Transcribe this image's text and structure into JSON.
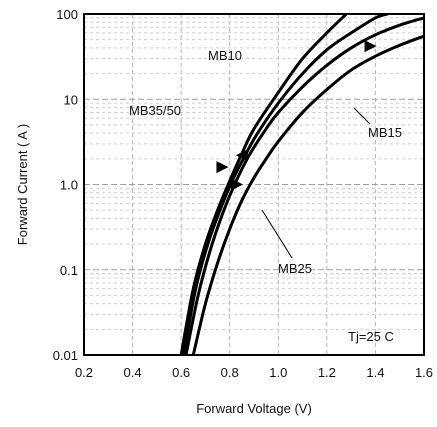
{
  "chart_data": {
    "type": "line",
    "xlabel": "Forward Voltage (V)",
    "ylabel": "Forward Current ( A )",
    "xlim": [
      0.2,
      1.6
    ],
    "ylim": [
      0.01,
      100
    ],
    "yscale": "log",
    "xticks": [
      "0.2",
      "0.4",
      "0.6",
      "0.8",
      "1.0",
      "1.2",
      "1.4",
      "1.6"
    ],
    "yticks": [
      "0.01",
      "0.1",
      "1.0",
      "10",
      "100"
    ],
    "grid": true,
    "annotation": "Tj=25 C",
    "series": [
      {
        "name": "MB10",
        "x": [
          0.6,
          0.65,
          0.7,
          0.75,
          0.8,
          0.85,
          0.9,
          1.0,
          1.1,
          1.2,
          1.28
        ],
        "y": [
          0.01,
          0.06,
          0.2,
          0.5,
          1.1,
          2.3,
          4.5,
          12,
          30,
          60,
          100
        ]
      },
      {
        "name": "MB35/50",
        "x": [
          0.61,
          0.66,
          0.71,
          0.76,
          0.81,
          0.86,
          0.91,
          1.0,
          1.1,
          1.2,
          1.3,
          1.4,
          1.45
        ],
        "y": [
          0.01,
          0.06,
          0.2,
          0.5,
          1.1,
          2.1,
          3.8,
          9,
          20,
          38,
          60,
          90,
          100
        ]
      },
      {
        "name": "MB15",
        "x": [
          0.62,
          0.67,
          0.72,
          0.77,
          0.82,
          0.88,
          0.95,
          1.0,
          1.1,
          1.2,
          1.3,
          1.4,
          1.5,
          1.6
        ],
        "y": [
          0.01,
          0.05,
          0.17,
          0.45,
          1.0,
          2.2,
          4.5,
          7,
          14,
          25,
          40,
          57,
          74,
          90
        ]
      },
      {
        "name": "MB25",
        "x": [
          0.65,
          0.7,
          0.75,
          0.8,
          0.85,
          0.9,
          0.95,
          1.0,
          1.1,
          1.2,
          1.3,
          1.4,
          1.5,
          1.6
        ],
        "y": [
          0.01,
          0.04,
          0.12,
          0.3,
          0.65,
          1.2,
          2.0,
          3.2,
          7,
          13,
          22,
          32,
          43,
          55
        ]
      }
    ]
  }
}
